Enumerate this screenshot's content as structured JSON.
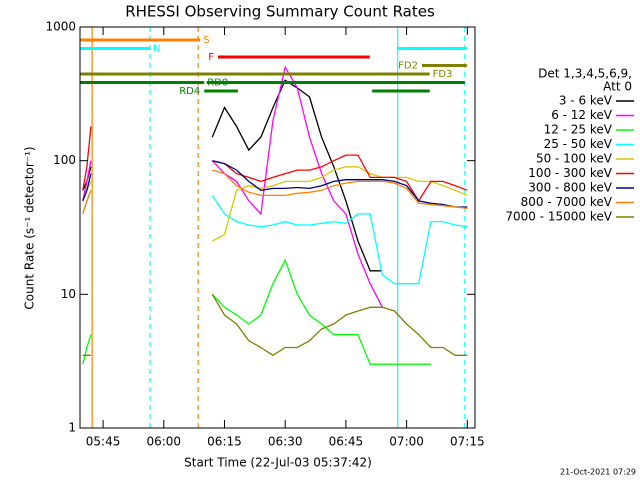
{
  "chart_data": {
    "type": "line",
    "title": "RHESSI Observing Summary Count Rates",
    "x_label": "Start Time (22-Jul-03 05:37:42)",
    "y_label": "Count Rate (s⁻¹ detector⁻¹)",
    "legend_title": [
      "Det 1,3,4,5,6,9,",
      "Att 0"
    ],
    "timestamp": "21-Oct-2021 07:29",
    "ylog": true,
    "ylim": [
      1,
      1000
    ],
    "yticks": [
      1,
      10,
      100,
      1000
    ],
    "xlim": [
      339.3,
      436.9
    ],
    "xticks": [
      {
        "value": 345,
        "label": "05:45"
      },
      {
        "value": 360,
        "label": "06:00"
      },
      {
        "value": 375,
        "label": "06:15"
      },
      {
        "value": 390,
        "label": "06:30"
      },
      {
        "value": 405,
        "label": "06:45"
      },
      {
        "value": 420,
        "label": "07:00"
      },
      {
        "value": 435,
        "label": "07:15"
      }
    ],
    "x": [
      340,
      341,
      342,
      350,
      372,
      375,
      378,
      381,
      384,
      387,
      390,
      393,
      396,
      399,
      402,
      405,
      408,
      411,
      414,
      417,
      420,
      423,
      426,
      429,
      432,
      435
    ],
    "series": [
      {
        "name": "3 - 6 keV",
        "color": "#000000",
        "values": [
          60,
          70,
          90,
          null,
          150,
          250,
          180,
          120,
          150,
          250,
          400,
          350,
          300,
          150,
          90,
          50,
          25,
          15,
          15,
          null,
          null,
          null,
          null,
          null,
          null,
          null
        ]
      },
      {
        "name": "6 - 12 keV",
        "color": "#ff00ff",
        "values": [
          50,
          70,
          100,
          null,
          100,
          80,
          70,
          50,
          40,
          200,
          500,
          350,
          150,
          80,
          50,
          40,
          20,
          12,
          8,
          null,
          null,
          null,
          null,
          null,
          null,
          null
        ]
      },
      {
        "name": "12 - 25 keV",
        "color": "#00ff00",
        "values": [
          3,
          4,
          5,
          null,
          10,
          8,
          7,
          6,
          7,
          12,
          18,
          10,
          7,
          6,
          5,
          5,
          5,
          3,
          3,
          3,
          3,
          3,
          3,
          null,
          null,
          null
        ]
      },
      {
        "name": "25 - 50 keV",
        "color": "#00ffff",
        "values": [
          40,
          50,
          60,
          null,
          55,
          40,
          35,
          33,
          32,
          33,
          35,
          33,
          33,
          34,
          35,
          34,
          40,
          40,
          14,
          12,
          12,
          12,
          35,
          35,
          33,
          32
        ]
      },
      {
        "name": "50 - 100 keV",
        "color": "#d4c800",
        "values": [
          50,
          60,
          70,
          null,
          25,
          28,
          60,
          65,
          62,
          65,
          70,
          70,
          70,
          75,
          85,
          90,
          90,
          80,
          75,
          75,
          75,
          70,
          70,
          65,
          60,
          55
        ]
      },
      {
        "name": "100 - 300 keV",
        "color": "#ff0000",
        "values": [
          60,
          90,
          180,
          null,
          100,
          95,
          80,
          75,
          70,
          75,
          80,
          85,
          85,
          90,
          100,
          110,
          110,
          75,
          75,
          75,
          70,
          50,
          70,
          70,
          65,
          60
        ]
      },
      {
        "name": "300 - 800 keV",
        "color": "#000080",
        "values": [
          50,
          60,
          80,
          null,
          100,
          95,
          85,
          70,
          60,
          62,
          62,
          63,
          62,
          65,
          70,
          72,
          72,
          72,
          72,
          70,
          65,
          50,
          48,
          47,
          45,
          45
        ]
      },
      {
        "name": "800 - 7000 keV",
        "color": "#ff8000",
        "values": [
          40,
          50,
          60,
          null,
          85,
          80,
          65,
          58,
          55,
          55,
          55,
          57,
          58,
          60,
          65,
          68,
          70,
          70,
          70,
          68,
          62,
          48,
          47,
          46,
          45,
          44
        ]
      },
      {
        "name": "7000 - 15000 keV",
        "color": "#808000",
        "values": [
          3.5,
          3.5,
          3.5,
          null,
          10,
          7,
          6,
          4.5,
          4,
          3.5,
          4,
          4,
          4.5,
          5.5,
          6,
          7,
          7.5,
          8,
          8,
          7.5,
          6,
          5,
          4,
          4,
          3.5,
          3.5
        ]
      }
    ],
    "flags": [
      {
        "label": "S",
        "color": "#ff8000",
        "segments": [
          [
            339.3,
            369.0
          ]
        ]
      },
      {
        "label": "N",
        "color": "#00ffff",
        "segments": [
          [
            339.3,
            356.6
          ],
          [
            417.8,
            434.9
          ]
        ]
      },
      {
        "label": "F",
        "color": "#ff0000",
        "segments": [
          [
            373.4,
            410.9
          ]
        ]
      },
      {
        "label": "FD2",
        "color": "#808000",
        "segments": [
          [
            423.8,
            434.9
          ]
        ]
      },
      {
        "label": "FD3",
        "color": "#808000",
        "segments": [
          [
            339.3,
            425.7
          ]
        ]
      },
      {
        "label": "RD0",
        "color": "#008000",
        "segments": [
          [
            339.3,
            370.0
          ],
          [
            370.6,
            434.4
          ]
        ]
      },
      {
        "label": "RD4",
        "color": "#008000",
        "segments": [
          [
            370.0,
            378.3
          ],
          [
            411.5,
            425.7
          ]
        ]
      }
    ],
    "vlines": [
      {
        "x": 342.3,
        "color": "#ff8000",
        "dashed": false
      },
      {
        "x": 368.5,
        "color": "#ff8000",
        "dashed": true
      },
      {
        "x": 356.6,
        "color": "#00ffff",
        "dashed": true
      },
      {
        "x": 417.8,
        "color": "#00ffff",
        "dashed": false
      },
      {
        "x": 434.4,
        "color": "#00ffff",
        "dashed": true
      }
    ]
  }
}
